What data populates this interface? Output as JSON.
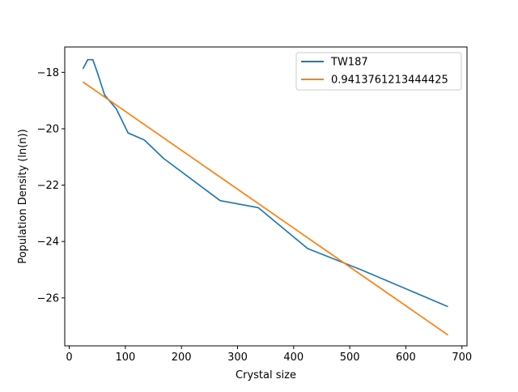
{
  "chart_data": {
    "type": "line",
    "title": "",
    "xlabel": "Crystal size",
    "ylabel": "Population Density (ln(n))",
    "xlim": [
      -8,
      709
    ],
    "ylim": [
      -27.7,
      -17.1
    ],
    "xticks": [
      0,
      100,
      200,
      300,
      400,
      500,
      600,
      700
    ],
    "yticks": [
      -26,
      -24,
      -22,
      -20,
      -18
    ],
    "tick_label_format": "unicode-minus",
    "grid": false,
    "legend_position": "upper right",
    "series": [
      {
        "name": "TW187",
        "color": "#1f77b4",
        "x": [
          25,
          33,
          42,
          50,
          63,
          84,
          105,
          134,
          168,
          269,
          337,
          425,
          520,
          674
        ],
        "y": [
          -17.85,
          -17.55,
          -17.55,
          -18.0,
          -18.8,
          -19.3,
          -20.15,
          -20.4,
          -21.05,
          -22.55,
          -22.8,
          -24.25,
          -25.0,
          -26.3
        ]
      },
      {
        "name": "0.9413761213444425",
        "color": "#ff7f0e",
        "x": [
          25,
          674
        ],
        "y": [
          -18.35,
          -27.3
        ]
      }
    ]
  }
}
